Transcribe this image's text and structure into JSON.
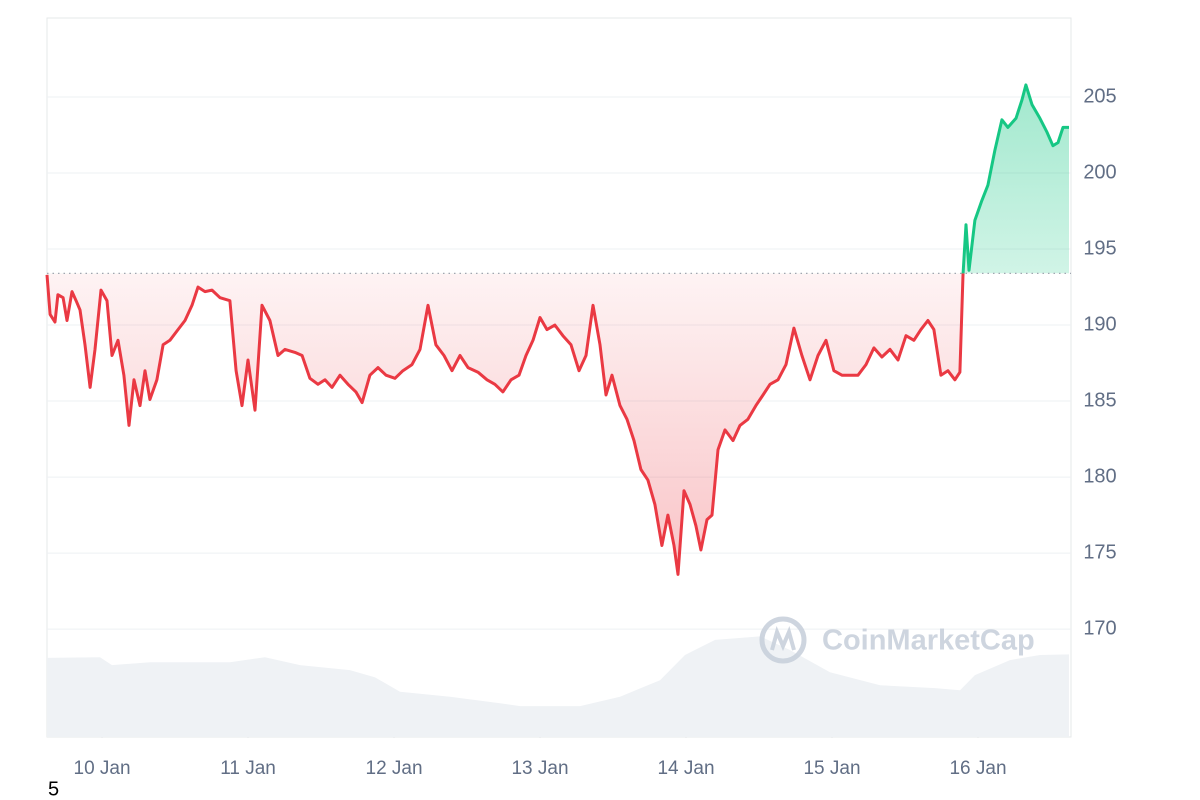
{
  "chart_data": {
    "type": "line",
    "x": [
      9.623,
      9.644,
      9.678,
      9.698,
      9.733,
      9.76,
      9.794,
      9.822,
      9.849,
      9.883,
      9.918,
      9.952,
      9.993,
      10.034,
      10.068,
      10.109,
      10.15,
      10.185,
      10.219,
      10.26,
      10.294,
      10.328,
      10.376,
      10.418,
      10.465,
      10.52,
      10.568,
      10.616,
      10.657,
      10.705,
      10.753,
      10.808,
      10.876,
      10.918,
      10.959,
      11.0,
      11.048,
      11.096,
      11.15,
      11.205,
      11.253,
      11.322,
      11.37,
      11.424,
      11.479,
      11.527,
      11.575,
      11.63,
      11.685,
      11.739,
      11.781,
      11.835,
      11.89,
      11.945,
      12.007,
      12.061,
      12.123,
      12.178,
      12.233,
      12.287,
      12.342,
      12.397,
      12.452,
      12.507,
      12.575,
      12.637,
      12.691,
      12.746,
      12.801,
      12.856,
      12.904,
      12.952,
      13.0,
      13.048,
      13.102,
      13.157,
      13.212,
      13.267,
      13.315,
      13.363,
      13.411,
      13.452,
      13.493,
      13.548,
      13.596,
      13.644,
      13.691,
      13.739,
      13.787,
      13.835,
      13.876,
      13.918,
      13.945,
      13.986,
      14.027,
      14.068,
      14.102,
      14.144,
      14.178,
      14.219,
      14.267,
      14.322,
      14.37,
      14.424,
      14.479,
      14.527,
      14.575,
      14.63,
      14.685,
      14.739,
      14.794,
      14.849,
      14.904,
      14.959,
      15.013,
      15.068,
      15.123,
      15.178,
      15.233,
      15.287,
      15.342,
      15.397,
      15.452,
      15.507,
      15.561,
      15.609,
      15.657,
      15.698,
      15.746,
      15.794,
      15.842,
      15.876,
      15.897,
      15.918,
      15.938,
      15.979,
      16.027,
      16.068,
      16.116,
      16.164,
      16.205,
      16.26,
      16.301,
      16.328,
      16.37,
      16.424,
      16.472,
      16.513,
      16.548,
      16.582,
      16.623
    ],
    "values": [
      193.3,
      190.7,
      190.2,
      192.0,
      191.8,
      190.3,
      192.2,
      191.6,
      191.0,
      188.7,
      185.9,
      188.4,
      192.3,
      191.6,
      188.0,
      189.0,
      186.7,
      183.4,
      186.4,
      184.7,
      187.0,
      185.1,
      186.4,
      188.7,
      189.0,
      189.7,
      190.3,
      191.3,
      192.5,
      192.2,
      192.3,
      191.8,
      191.6,
      187.0,
      184.7,
      187.7,
      184.4,
      191.3,
      190.3,
      188.0,
      188.4,
      188.2,
      188.0,
      186.5,
      186.1,
      186.4,
      185.9,
      186.7,
      186.1,
      185.6,
      184.9,
      186.7,
      187.2,
      186.7,
      186.5,
      187.0,
      187.4,
      188.4,
      191.3,
      188.7,
      188.0,
      187.0,
      188.0,
      187.2,
      186.9,
      186.4,
      186.1,
      185.6,
      186.4,
      186.7,
      188.0,
      189.0,
      190.5,
      189.7,
      190.0,
      189.3,
      188.7,
      187.0,
      188.0,
      191.3,
      188.7,
      185.4,
      186.7,
      184.7,
      183.8,
      182.4,
      180.5,
      179.8,
      178.2,
      175.5,
      177.5,
      175.5,
      173.6,
      179.1,
      178.2,
      176.8,
      175.2,
      177.2,
      177.5,
      181.8,
      183.1,
      182.4,
      183.4,
      183.8,
      184.7,
      185.4,
      186.1,
      186.4,
      187.4,
      189.8,
      188.0,
      186.4,
      188.0,
      189.0,
      187.0,
      186.7,
      186.7,
      186.7,
      187.4,
      188.5,
      187.9,
      188.4,
      187.7,
      189.3,
      189.0,
      189.7,
      190.3,
      189.7,
      186.7,
      187.0,
      186.4,
      186.9,
      193.3,
      196.6,
      193.6,
      196.9,
      198.2,
      199.2,
      201.5,
      203.5,
      203.0,
      203.6,
      204.8,
      205.8,
      204.5,
      203.6,
      202.7,
      201.8,
      202.0,
      203.0,
      203.0
    ],
    "baseline": 193.4,
    "up_color": "#16c784",
    "down_color": "#ea3943",
    "volume": {
      "axis": "y2",
      "color": "#eff2f5",
      "x": [
        9.623,
        9.986,
        10.068,
        10.329,
        10.876,
        11.116,
        11.356,
        11.698,
        11.87,
        12.041,
        12.383,
        12.726,
        12.863,
        13.274,
        13.548,
        13.822,
        13.993,
        14.199,
        14.507,
        14.712,
        14.986,
        15.329,
        15.705,
        15.877,
        15.979,
        16.219,
        16.424,
        16.623
      ],
      "values": [
        11.0,
        11.1,
        10.0,
        10.4,
        10.4,
        11.1,
        10.0,
        9.3,
        8.3,
        6.3,
        5.6,
        4.7,
        4.3,
        4.3,
        5.6,
        7.9,
        11.4,
        13.5,
        14.0,
        12.1,
        9.0,
        7.2,
        6.8,
        6.5,
        8.6,
        10.7,
        11.4,
        11.5
      ]
    },
    "xlim": [
      9.623,
      16.637
    ],
    "ylim": [
      162.9,
      210.2
    ],
    "y2lim": [
      0,
      100
    ],
    "xticks": [
      {
        "value": 10,
        "label": "10 Jan"
      },
      {
        "value": 11,
        "label": "11 Jan"
      },
      {
        "value": 12,
        "label": "12 Jan"
      },
      {
        "value": 13,
        "label": "13 Jan"
      },
      {
        "value": 14,
        "label": "14 Jan"
      },
      {
        "value": 15,
        "label": "15 Jan"
      },
      {
        "value": 16,
        "label": "16 Jan"
      }
    ],
    "yticks": [
      170,
      175,
      180,
      185,
      190,
      195,
      200,
      205
    ],
    "grid": true,
    "watermark": "CoinMarketCap"
  },
  "footer_note": "5"
}
